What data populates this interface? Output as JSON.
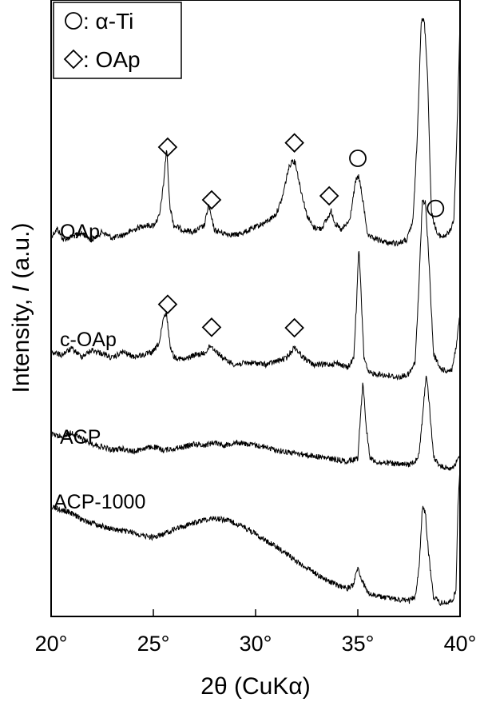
{
  "chart_data": {
    "type": "line",
    "xlabel": "2θ (CuKα)",
    "ylabel_prefix": "Intensity, ",
    "ylabel_italic": "I",
    "ylabel_suffix": " (a.u.)",
    "xlim": [
      20,
      40
    ],
    "xticks": [
      20,
      25,
      30,
      35,
      40
    ],
    "xtick_labels": [
      "20°",
      "25°",
      "30°",
      "35°",
      "40°"
    ],
    "yticks": "none",
    "grid": false,
    "legend_position": "top-left",
    "legend": [
      {
        "marker": "circle",
        "text": ": α-Ti"
      },
      {
        "marker": "diamond",
        "text": ": OAp"
      }
    ],
    "series": [
      {
        "name": "OAp",
        "x": [
          20.0,
          20.3,
          20.6,
          21.0,
          21.5,
          22.0,
          22.5,
          23.0,
          23.5,
          24.0,
          24.5,
          25.0,
          25.3,
          25.5,
          25.65,
          25.8,
          26.0,
          26.5,
          27.0,
          27.5,
          27.7,
          27.85,
          28.0,
          28.5,
          29.0,
          29.5,
          30.0,
          30.5,
          31.0,
          31.3,
          31.6,
          31.8,
          31.95,
          32.2,
          32.5,
          32.8,
          33.2,
          33.5,
          33.7,
          33.9,
          34.2,
          34.6,
          34.9,
          35.05,
          35.25,
          35.5,
          36.0,
          36.5,
          37.0,
          37.4,
          37.7,
          37.9,
          38.1,
          38.25,
          38.4,
          38.6,
          38.9,
          39.2,
          39.5,
          39.7,
          39.85,
          40.0
        ],
        "y": [
          1.5,
          2.0,
          1.3,
          1.5,
          1.7,
          1.3,
          1.8,
          1.4,
          1.6,
          1.9,
          2.2,
          2.2,
          2.8,
          4.8,
          7.1,
          3.5,
          2.2,
          1.9,
          1.8,
          2.2,
          3.5,
          2.6,
          1.9,
          1.7,
          1.6,
          1.8,
          2.1,
          2.4,
          2.9,
          3.9,
          5.7,
          6.3,
          6.1,
          4.5,
          2.9,
          2.1,
          2.0,
          2.6,
          3.1,
          2.3,
          1.9,
          2.5,
          5.0,
          5.3,
          3.7,
          1.5,
          1.3,
          1.1,
          1.1,
          1.3,
          2.5,
          7.5,
          15.0,
          15.0,
          12.0,
          3.0,
          1.6,
          1.5,
          1.8,
          2.6,
          8.0,
          15.0
        ]
      },
      {
        "name": "c-OAp",
        "x": [
          20.0,
          20.5,
          21.0,
          21.5,
          22.0,
          22.5,
          23.0,
          23.5,
          24.0,
          24.5,
          25.0,
          25.3,
          25.5,
          25.65,
          25.8,
          26.0,
          26.5,
          27.0,
          27.5,
          27.8,
          28.1,
          28.5,
          29.0,
          29.5,
          30.0,
          30.5,
          31.0,
          31.5,
          31.9,
          32.3,
          32.8,
          33.5,
          34.0,
          34.5,
          34.8,
          34.95,
          35.05,
          35.15,
          35.3,
          35.5,
          36.0,
          36.5,
          37.0,
          37.5,
          37.8,
          38.0,
          38.15,
          38.3,
          38.45,
          38.7,
          39.0,
          39.3,
          39.6,
          39.8,
          40.0
        ],
        "y": [
          2.6,
          2.4,
          2.8,
          2.3,
          2.7,
          2.5,
          2.2,
          2.6,
          2.3,
          2.4,
          2.6,
          3.2,
          4.7,
          5.0,
          3.1,
          2.3,
          2.1,
          2.4,
          2.5,
          3.0,
          2.6,
          2.1,
          1.8,
          1.9,
          1.9,
          1.8,
          2.0,
          2.2,
          2.9,
          2.3,
          1.8,
          1.8,
          1.9,
          1.6,
          2.2,
          6.0,
          9.2,
          6.5,
          2.3,
          1.3,
          1.2,
          1.1,
          1.0,
          1.2,
          1.9,
          7.0,
          12.0,
          12.0,
          9.0,
          2.5,
          1.6,
          1.4,
          1.5,
          2.8,
          5.0
        ]
      },
      {
        "name": "ACP",
        "x": [
          20.0,
          20.5,
          21.0,
          21.5,
          22.0,
          22.5,
          23.0,
          23.5,
          24.0,
          24.5,
          25.0,
          25.5,
          26.0,
          26.5,
          27.0,
          27.5,
          28.0,
          28.5,
          29.0,
          29.5,
          30.0,
          30.5,
          31.0,
          31.5,
          32.0,
          32.5,
          33.0,
          33.5,
          34.0,
          34.5,
          35.0,
          35.1,
          35.25,
          35.4,
          35.6,
          36.0,
          36.5,
          37.0,
          37.5,
          37.8,
          38.0,
          38.2,
          38.35,
          38.5,
          38.7,
          39.0,
          39.3,
          39.6,
          39.8,
          40.0
        ],
        "y": [
          2.4,
          2.2,
          2.5,
          2.1,
          1.8,
          1.6,
          1.4,
          1.5,
          1.3,
          1.5,
          1.6,
          1.4,
          1.5,
          1.6,
          1.8,
          1.7,
          1.9,
          1.7,
          1.9,
          1.8,
          1.7,
          1.6,
          1.4,
          1.3,
          1.2,
          1.1,
          1.0,
          0.9,
          0.8,
          0.7,
          0.9,
          3.0,
          5.7,
          3.0,
          0.9,
          0.6,
          0.6,
          0.5,
          0.5,
          0.7,
          1.2,
          4.0,
          6.2,
          4.2,
          1.0,
          0.4,
          0.3,
          0.3,
          0.6,
          1.0
        ]
      },
      {
        "name": "ACP-1000",
        "x": [
          20.0,
          20.5,
          21.0,
          21.5,
          22.0,
          22.5,
          23.0,
          23.5,
          24.0,
          24.5,
          25.0,
          25.5,
          26.0,
          26.5,
          27.0,
          27.5,
          28.0,
          28.5,
          29.0,
          29.5,
          30.0,
          30.5,
          31.0,
          31.5,
          32.0,
          32.5,
          33.0,
          33.5,
          34.0,
          34.5,
          34.8,
          35.0,
          35.2,
          35.5,
          36.0,
          36.5,
          37.0,
          37.5,
          37.8,
          38.0,
          38.15,
          38.3,
          38.45,
          38.7,
          39.0,
          39.3,
          39.6,
          39.8,
          39.9,
          40.0
        ],
        "y": [
          6.8,
          6.6,
          6.4,
          6.0,
          5.8,
          5.6,
          5.4,
          5.3,
          5.2,
          5.0,
          4.9,
          5.1,
          5.4,
          5.6,
          5.8,
          6.0,
          6.1,
          6.0,
          5.8,
          5.5,
          5.1,
          4.7,
          4.3,
          3.9,
          3.4,
          3.0,
          2.6,
          2.2,
          1.9,
          1.7,
          2.0,
          3.0,
          2.2,
          1.4,
          1.2,
          1.1,
          1.0,
          0.9,
          1.2,
          3.0,
          6.7,
          6.5,
          4.0,
          1.2,
          0.8,
          0.8,
          0.9,
          1.5,
          7.0,
          9.5
        ]
      }
    ],
    "peak_markers": {
      "diamond": [
        {
          "series": "OAp",
          "x": 25.7
        },
        {
          "series": "OAp",
          "x": 27.85
        },
        {
          "series": "OAp",
          "x": 31.9
        },
        {
          "series": "OAp",
          "x": 33.6
        },
        {
          "series": "c-OAp",
          "x": 25.7
        },
        {
          "series": "c-OAp",
          "x": 27.85
        },
        {
          "series": "c-OAp",
          "x": 31.9
        }
      ],
      "circle": [
        {
          "series": "OAp",
          "x": 35.0
        },
        {
          "series": "OAp",
          "x": 38.8
        }
      ]
    }
  }
}
